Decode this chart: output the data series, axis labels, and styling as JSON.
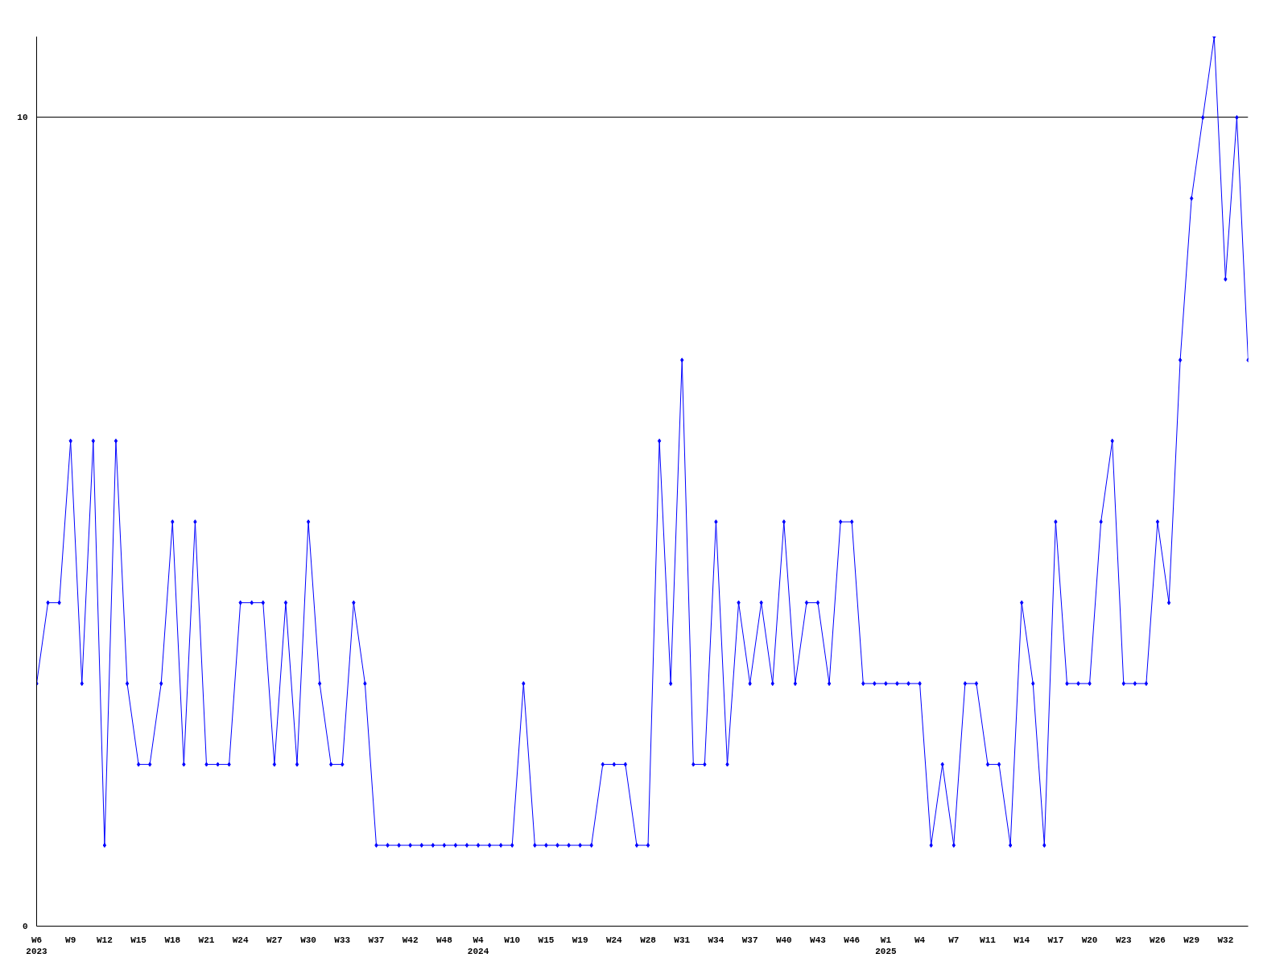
{
  "chart_data": {
    "type": "line",
    "categories": [
      "W6\n2023",
      null,
      null,
      "W9",
      null,
      null,
      "W12",
      null,
      null,
      "W15",
      null,
      null,
      "W18",
      null,
      null,
      "W21",
      null,
      null,
      "W24",
      null,
      null,
      "W27",
      null,
      null,
      "W30",
      null,
      null,
      "W33",
      null,
      null,
      "W37",
      null,
      null,
      "W42",
      null,
      null,
      "W48",
      null,
      null,
      "W4\n2024",
      null,
      null,
      "W10",
      null,
      null,
      "W15",
      null,
      null,
      "W19",
      null,
      null,
      "W24",
      null,
      null,
      "W28",
      null,
      null,
      "W31",
      null,
      null,
      "W34",
      null,
      null,
      "W37",
      null,
      null,
      "W40",
      null,
      null,
      "W43",
      null,
      null,
      "W46",
      null,
      null,
      "W1\n2025",
      null,
      null,
      "W4",
      null,
      null,
      "W7",
      null,
      null,
      "W11",
      null,
      null,
      "W14",
      null,
      null,
      "W17",
      null,
      null,
      "W20",
      null,
      null,
      "W23",
      null,
      null,
      "W26",
      null,
      null,
      "W29",
      null,
      null,
      "W32",
      null,
      null
    ],
    "series": [
      {
        "color": "#0000ff",
        "values": [
          3,
          4,
          4,
          6,
          3,
          6,
          1,
          6,
          3,
          2,
          2,
          3,
          5,
          2,
          5,
          2,
          2,
          2,
          4,
          4,
          4,
          2,
          4,
          2,
          5,
          3,
          2,
          2,
          4,
          3,
          1,
          1,
          1,
          1,
          1,
          1,
          1,
          1,
          1,
          1,
          1,
          1,
          1,
          3,
          1,
          1,
          1,
          1,
          1,
          1,
          2,
          2,
          2,
          1,
          1,
          6,
          3,
          7,
          2,
          2,
          5,
          2,
          4,
          3,
          4,
          3,
          5,
          3,
          4,
          4,
          3,
          5,
          5,
          3,
          3,
          3,
          3,
          3,
          3,
          1,
          2,
          1,
          3,
          3,
          2,
          2,
          1,
          4,
          3,
          1,
          5,
          3,
          3,
          3,
          5,
          6,
          3,
          3,
          3,
          5,
          4,
          7,
          9,
          10,
          11,
          8,
          10,
          7
        ]
      }
    ],
    "ylim": [
      0,
      11
    ],
    "yticks": [
      0,
      10
    ],
    "grid": "y",
    "marker": "diamond",
    "line_style": "solid"
  }
}
